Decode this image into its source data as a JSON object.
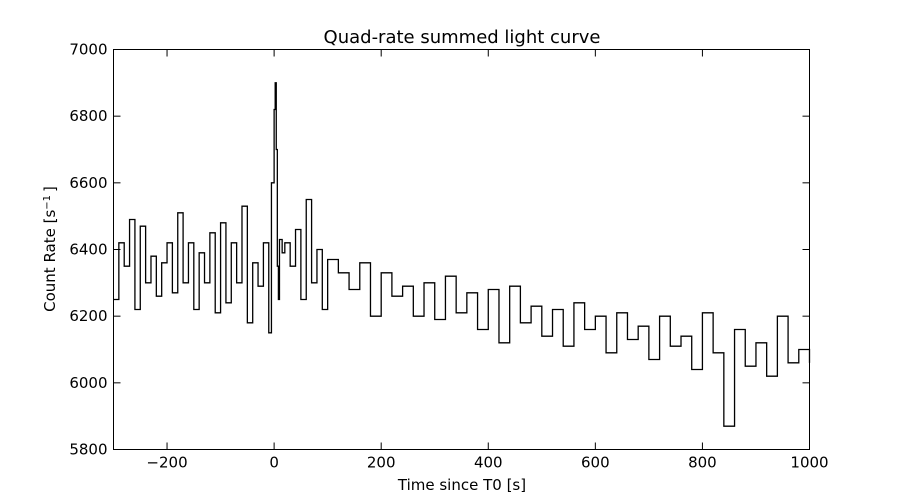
{
  "chart_data": {
    "type": "line",
    "title": "Quad-rate summed light curve",
    "xlabel": "Time since T0 [s]",
    "ylabel": "Count Rate [s",
    "ylabel_sup": "−1",
    "ylabel_tail": "]",
    "xlim": [
      -300,
      1000
    ],
    "ylim": [
      5800,
      7000
    ],
    "xticks": [
      -200,
      0,
      200,
      400,
      600,
      800,
      1000
    ],
    "xtick_labels": [
      "−200",
      "0",
      "200",
      "400",
      "600",
      "800",
      "1000"
    ],
    "yticks": [
      5800,
      6000,
      6200,
      6400,
      6600,
      6800,
      7000
    ],
    "ytick_labels": [
      "5800",
      "6000",
      "6200",
      "6400",
      "6600",
      "6800",
      "7000"
    ],
    "grid": false,
    "line_color": "#000000",
    "series": [
      {
        "x": [
          -300,
          -290,
          -280,
          -270,
          -260,
          -250,
          -240,
          -230,
          -220,
          -210,
          -200,
          -190,
          -180,
          -170,
          -160,
          -150,
          -140,
          -130,
          -120,
          -110,
          -100,
          -90,
          -80,
          -70,
          -60,
          -50,
          -40,
          -30,
          -20,
          -10,
          -5,
          0,
          2,
          4,
          6,
          8,
          10,
          15,
          20,
          30,
          40,
          50,
          60,
          70,
          80,
          90,
          100,
          120,
          140,
          160,
          180,
          200,
          220,
          240,
          260,
          280,
          300,
          320,
          340,
          360,
          380,
          400,
          420,
          440,
          460,
          480,
          500,
          520,
          540,
          560,
          580,
          600,
          620,
          640,
          660,
          680,
          700,
          720,
          740,
          760,
          780,
          800,
          820,
          840,
          860,
          880,
          900,
          920,
          940,
          960,
          980,
          1000
        ],
        "values": [
          6250,
          6420,
          6350,
          6490,
          6220,
          6470,
          6300,
          6380,
          6260,
          6360,
          6420,
          6270,
          6510,
          6300,
          6420,
          6220,
          6390,
          6300,
          6450,
          6210,
          6480,
          6240,
          6420,
          6300,
          6530,
          6180,
          6360,
          6290,
          6420,
          6150,
          6600,
          6820,
          6900,
          6700,
          6350,
          6250,
          6430,
          6390,
          6420,
          6350,
          6460,
          6250,
          6550,
          6300,
          6400,
          6220,
          6370,
          6330,
          6280,
          6360,
          6200,
          6330,
          6260,
          6290,
          6200,
          6300,
          6190,
          6320,
          6210,
          6270,
          6160,
          6280,
          6120,
          6290,
          6180,
          6230,
          6140,
          6220,
          6110,
          6240,
          6160,
          6200,
          6090,
          6210,
          6130,
          6170,
          6070,
          6200,
          6110,
          6140,
          6040,
          6210,
          6090,
          5870,
          6160,
          6050,
          6120,
          6020,
          6200,
          6060,
          6100,
          6060
        ]
      }
    ]
  }
}
